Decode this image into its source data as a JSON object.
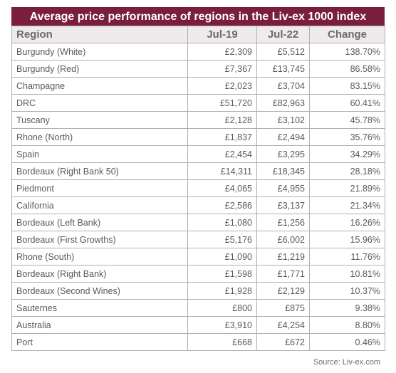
{
  "chart_data": {
    "type": "table",
    "title": "Average price performance of regions in the Liv-ex 1000 index",
    "columns": [
      "Region",
      "Jul-19",
      "Jul-22",
      "Change"
    ],
    "rows": [
      {
        "region": "Burgundy (White)",
        "jul19": "£2,309",
        "jul22": "£5,512",
        "change": "138.70%"
      },
      {
        "region": "Burgundy (Red)",
        "jul19": "£7,367",
        "jul22": "£13,745",
        "change": "86.58%"
      },
      {
        "region": "Champagne",
        "jul19": "£2,023",
        "jul22": "£3,704",
        "change": "83.15%"
      },
      {
        "region": "DRC",
        "jul19": "£51,720",
        "jul22": "£82,963",
        "change": "60.41%"
      },
      {
        "region": "Tuscany",
        "jul19": "£2,128",
        "jul22": "£3,102",
        "change": "45.78%"
      },
      {
        "region": "Rhone (North)",
        "jul19": "£1,837",
        "jul22": "£2,494",
        "change": "35.76%"
      },
      {
        "region": "Spain",
        "jul19": "£2,454",
        "jul22": "£3,295",
        "change": "34.29%"
      },
      {
        "region": "Bordeaux (Right Bank 50)",
        "jul19": "£14,311",
        "jul22": "£18,345",
        "change": "28.18%"
      },
      {
        "region": "Piedmont",
        "jul19": "£4,065",
        "jul22": "£4,955",
        "change": "21.89%"
      },
      {
        "region": "California",
        "jul19": "£2,586",
        "jul22": "£3,137",
        "change": "21.34%"
      },
      {
        "region": "Bordeaux (Left Bank)",
        "jul19": "£1,080",
        "jul22": "£1,256",
        "change": "16.26%"
      },
      {
        "region": "Bordeaux (First Growths)",
        "jul19": "£5,176",
        "jul22": "£6,002",
        "change": "15.96%"
      },
      {
        "region": "Rhone (South)",
        "jul19": "£1,090",
        "jul22": "£1,219",
        "change": "11.76%"
      },
      {
        "region": "Bordeaux (Right Bank)",
        "jul19": "£1,598",
        "jul22": "£1,771",
        "change": "10.81%"
      },
      {
        "region": "Bordeaux (Second Wines)",
        "jul19": "£1,928",
        "jul22": "£2,129",
        "change": "10.37%"
      },
      {
        "region": "Sauternes",
        "jul19": "£800",
        "jul22": "£875",
        "change": "9.38%"
      },
      {
        "region": "Australia",
        "jul19": "£3,910",
        "jul22": "£4,254",
        "change": "8.80%"
      },
      {
        "region": "Port",
        "jul19": "£668",
        "jul22": "£672",
        "change": "0.46%"
      }
    ],
    "source": "Source: Liv-ex.com"
  },
  "colors": {
    "title_background": "#7a1e3e",
    "header_background": "#efeaec",
    "border": "#b0b0b0"
  }
}
